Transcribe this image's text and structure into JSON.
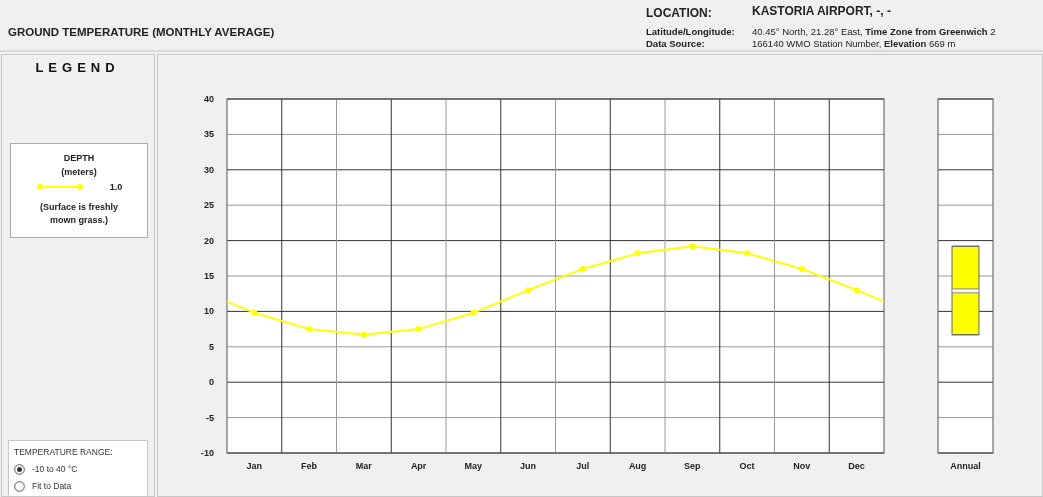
{
  "chart_data": [
    {
      "type": "line",
      "title": "GROUND TEMPERATURE (MONTHLY AVERAGE)",
      "legend_title": "DEPTH (meters)",
      "annotations": [
        "LEGEND",
        "(Surface is freshly mown grass.)",
        "LOCATION:",
        "KASTORIA AIRPORT, -, -",
        "Latitude/Longitude:",
        "40.45° North, 21.28° East,",
        "Time Zone from Greenwich",
        "2",
        "Data Source:",
        "166140 WMO Station Number,",
        "Elevation",
        "669 m",
        "TEMPERATURE RANGE:",
        "-10 to 40 °C",
        "Fit to Data"
      ],
      "categories": [
        "Jan",
        "Feb",
        "Mar",
        "Apr",
        "May",
        "Jun",
        "Jul",
        "Aug",
        "Sep",
        "Oct",
        "Nov",
        "Dec"
      ],
      "series": [
        {
          "name": "1.0",
          "color": "#ffff00",
          "values": [
            9.8,
            7.5,
            6.7,
            7.5,
            9.8,
            13.0,
            16.0,
            18.2,
            19.2,
            18.2,
            16.0,
            13.0
          ]
        }
      ],
      "ylim": [
        -10,
        40
      ],
      "yticks": [
        -10,
        -5,
        0,
        5,
        10,
        15,
        20,
        25,
        30,
        35,
        40
      ],
      "grid": true,
      "legend": "left",
      "marker": "circle"
    },
    {
      "type": "box",
      "categories": [
        "Annual"
      ],
      "boxes": [
        {
          "low": 6.7,
          "q1": 6.7,
          "median": 12.9,
          "q3": 19.2,
          "high": 19.2
        }
      ],
      "color": "#ffff00",
      "ylim": [
        -10,
        40
      ],
      "yticks": [
        -10,
        -5,
        0,
        5,
        10,
        15,
        20,
        25,
        30,
        35,
        40
      ],
      "grid": "y",
      "tick_labels": "x"
    }
  ]
}
